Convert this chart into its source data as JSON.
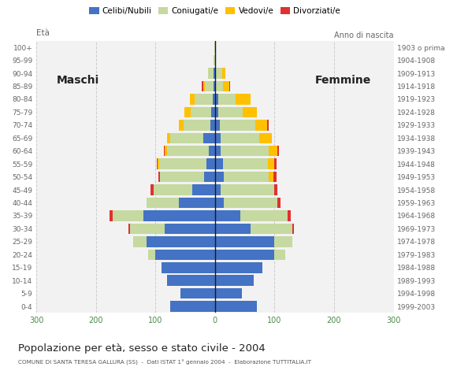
{
  "age_groups": [
    "0-4",
    "5-9",
    "10-14",
    "15-19",
    "20-24",
    "25-29",
    "30-34",
    "35-39",
    "40-44",
    "45-49",
    "50-54",
    "55-59",
    "60-64",
    "65-69",
    "70-74",
    "75-79",
    "80-84",
    "85-89",
    "90-94",
    "95-99",
    "100+"
  ],
  "birth_years": [
    "1999-2003",
    "1994-1998",
    "1989-1993",
    "1984-1988",
    "1979-1983",
    "1974-1978",
    "1969-1973",
    "1964-1968",
    "1959-1963",
    "1954-1958",
    "1949-1953",
    "1944-1948",
    "1939-1943",
    "1934-1938",
    "1929-1933",
    "1924-1928",
    "1919-1923",
    "1914-1918",
    "1909-1913",
    "1904-1908",
    "1903 o prima"
  ],
  "male_celibe": [
    75,
    58,
    80,
    90,
    100,
    115,
    85,
    120,
    60,
    38,
    18,
    14,
    10,
    20,
    8,
    6,
    4,
    2,
    2,
    0,
    0
  ],
  "male_coniugato": [
    0,
    0,
    0,
    0,
    12,
    22,
    58,
    52,
    55,
    65,
    75,
    80,
    70,
    55,
    45,
    35,
    30,
    15,
    10,
    2,
    1
  ],
  "male_vedovo": [
    0,
    0,
    0,
    0,
    0,
    0,
    0,
    0,
    0,
    0,
    0,
    2,
    4,
    5,
    8,
    10,
    8,
    3,
    0,
    0,
    0
  ],
  "male_divorziato": [
    0,
    0,
    0,
    0,
    0,
    0,
    2,
    5,
    0,
    5,
    2,
    2,
    2,
    0,
    0,
    0,
    0,
    2,
    0,
    0,
    0
  ],
  "female_celibe": [
    70,
    45,
    65,
    80,
    100,
    100,
    60,
    42,
    15,
    10,
    15,
    14,
    10,
    10,
    8,
    6,
    5,
    2,
    2,
    0,
    0
  ],
  "female_coniugato": [
    0,
    0,
    0,
    0,
    18,
    30,
    70,
    80,
    90,
    90,
    75,
    75,
    80,
    65,
    60,
    40,
    30,
    12,
    10,
    2,
    0
  ],
  "female_vedovo": [
    0,
    0,
    0,
    0,
    0,
    0,
    0,
    0,
    0,
    0,
    8,
    10,
    15,
    20,
    20,
    25,
    25,
    10,
    5,
    0,
    0
  ],
  "female_divorziato": [
    0,
    0,
    0,
    0,
    0,
    0,
    2,
    5,
    5,
    5,
    5,
    5,
    3,
    0,
    2,
    0,
    0,
    2,
    0,
    0,
    0
  ],
  "color_celibe": "#4472c4",
  "color_coniugato": "#c5d9a0",
  "color_vedovo": "#ffc000",
  "color_divorziato": "#e03030",
  "title": "Popolazione per età, sesso e stato civile - 2004",
  "subtitle": "COMUNE DI SANTA TERESA GALLURA (SS)  -  Dati ISTAT 1° gennaio 2004  -  Elaborazione TUTTITALIA.IT",
  "label_maschi": "Maschi",
  "label_femmine": "Femmine",
  "label_eta": "Età",
  "label_anno": "Anno di nascita",
  "xlim": 300,
  "bg_color": "#ffffff",
  "plot_bg": "#f2f2f2",
  "grid_color": "#cccccc",
  "legend_labels": [
    "Celibi/Nubili",
    "Coniugati/e",
    "Vedovi/e",
    "Divorziati/e"
  ],
  "tick_color": "#4a8a4a",
  "label_color": "#666666",
  "title_color": "#222222",
  "subtitle_color": "#555555"
}
